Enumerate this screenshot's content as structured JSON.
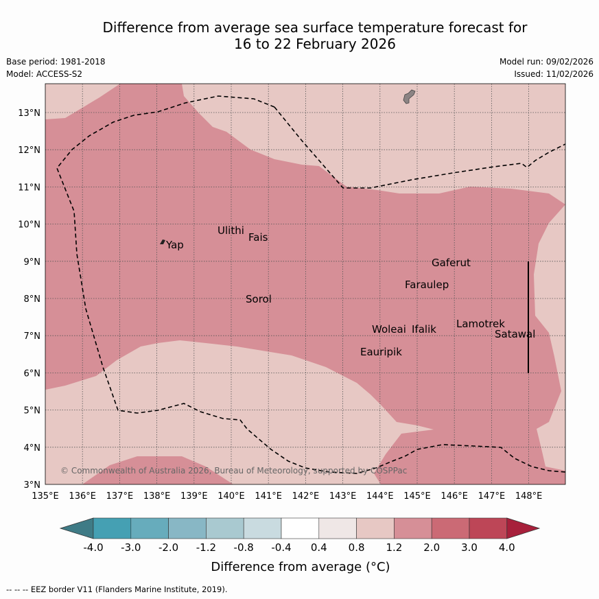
{
  "title": {
    "line1": "Difference from average sea surface temperature forecast for",
    "line2": "16 to 22 February 2026"
  },
  "meta": {
    "base_period": "Base period: 1981-2018",
    "model": "Model: ACCESS-S2",
    "model_run": "Model run: 09/02/2026",
    "issued": "Issued: 11/02/2026"
  },
  "map": {
    "lon_ticks": [
      "135°E",
      "136°E",
      "137°E",
      "138°E",
      "139°E",
      "140°E",
      "141°E",
      "142°E",
      "143°E",
      "144°E",
      "145°E",
      "146°E",
      "147°E",
      "148°E"
    ],
    "lat_ticks": [
      "3°N",
      "4°N",
      "5°N",
      "6°N",
      "7°N",
      "8°N",
      "9°N",
      "10°N",
      "11°N",
      "12°N",
      "13°N"
    ],
    "places": [
      {
        "name": "Yap"
      },
      {
        "name": "Ulithi"
      },
      {
        "name": "Fais"
      },
      {
        "name": "Gaferut"
      },
      {
        "name": "Faraulep"
      },
      {
        "name": "Sorol"
      },
      {
        "name": "Lamotrek"
      },
      {
        "name": "Satawal"
      },
      {
        "name": "Woleai"
      },
      {
        "name": "Ifalik"
      },
      {
        "name": "Eauripik"
      }
    ],
    "copyright": "© Commonwealth of Australia 2026, Bureau of Meteorology, supported by COSPPac"
  },
  "colorbar": {
    "labels": [
      "-4.0",
      "-3.0",
      "-2.0",
      "-1.2",
      "-0.8",
      "-0.4",
      "0.4",
      "0.8",
      "1.2",
      "2.0",
      "3.0",
      "4.0"
    ],
    "colors": [
      "#3f7b86",
      "#45a0b3",
      "#67acbc",
      "#88b7c5",
      "#a9c9d0",
      "#c9dbe0",
      "#ffffff",
      "#efe7e6",
      "#e7c8c4",
      "#d68f97",
      "#cb6a75",
      "#bd4657",
      "#a7203b"
    ],
    "label": "Difference from average (°C)"
  },
  "footer": "--  --  -- EEZ border V11 (Flanders Marine Institute, 2019)."
}
